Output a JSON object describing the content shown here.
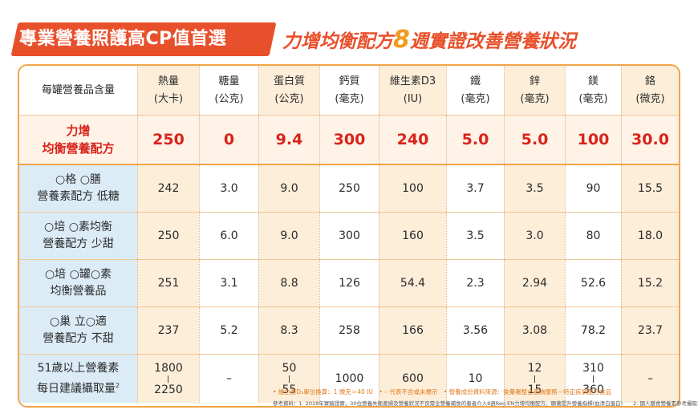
{
  "header": {
    "left_title": "專業營養照護高CP值首選",
    "right_title_pre": "力增均衡配方",
    "right_title_num": "8",
    "right_title_post": "週實證改善營養狀況"
  },
  "table": {
    "columns": [
      {
        "name": "每罐營養品含量",
        "unit": ""
      },
      {
        "name": "熱量",
        "unit": "(大卡)"
      },
      {
        "name": "糖量",
        "unit": "(公克)"
      },
      {
        "name": "蛋白質",
        "unit": "(公克)"
      },
      {
        "name": "鈣質",
        "unit": "(毫克)"
      },
      {
        "name": "維生素D3",
        "unit": "(IU)"
      },
      {
        "name": "鐵",
        "unit": "(毫克)"
      },
      {
        "name": "鋅",
        "unit": "(毫克)"
      },
      {
        "name": "鎂",
        "unit": "(毫克)"
      },
      {
        "name": "鉻",
        "unit": "(微克)"
      }
    ],
    "product_row": {
      "label_line1": "力增",
      "label_line2": "均衡營養配方",
      "values": [
        "250",
        "0",
        "9.4",
        "300",
        "240",
        "5.0",
        "5.0",
        "100",
        "30.0"
      ]
    },
    "rows": [
      {
        "label_line1": "○格 ○膳",
        "label_line2": "營養素配方 低糖",
        "values": [
          "242",
          "3.0",
          "9.0",
          "250",
          "100",
          "3.7",
          "3.5",
          "90",
          "15.5"
        ]
      },
      {
        "label_line1": "○培 ○素均衡",
        "label_line2": "營養配方 少甜",
        "values": [
          "250",
          "6.0",
          "9.0",
          "300",
          "160",
          "3.5",
          "3.0",
          "80",
          "18.0"
        ]
      },
      {
        "label_line1": "○培 ○罐○素",
        "label_line2": "均衡營養品",
        "values": [
          "251",
          "3.1",
          "8.8",
          "126",
          "54.4",
          "2.3",
          "2.94",
          "52.6",
          "15.2"
        ]
      },
      {
        "label_line1": "○巢 立○適",
        "label_line2": "營養配方 不甜",
        "values": [
          "237",
          "5.2",
          "8.3",
          "258",
          "166",
          "3.56",
          "3.08",
          "78.2",
          "23.7"
        ]
      }
    ],
    "last_row": {
      "label_line1": "51歲以上營養素",
      "label_line2": "每日建議攝取量",
      "label_sup": "2",
      "calories_low": "1800",
      "calories_high": "2250",
      "sugar": "–",
      "protein_low": "50",
      "protein_high": "55",
      "calcium": "1000",
      "vitd": "600",
      "iron": "10",
      "zinc_low": "12",
      "zinc_high": "15",
      "magnesium_low": "310",
      "magnesium_high": "360",
      "chromium": "–"
    }
  },
  "footnotes": {
    "line1": "• 維生素D₃單位換算：1 微克＝40 IU　• – 代表不含或未標示　• 營養成份資料來源：食藥署整合查詢服務－特定疾病配方食品",
    "line2": "參考資料：1. 2018年實驗證實，30位營養失衡產婦及營養狀況不良需全營養補食的患者介入8週Reg.EN力增均衡配方，顯著提升營養指標(血清白蛋白)　　2. 國人膳食營養素參考攝取量第八版"
  }
}
